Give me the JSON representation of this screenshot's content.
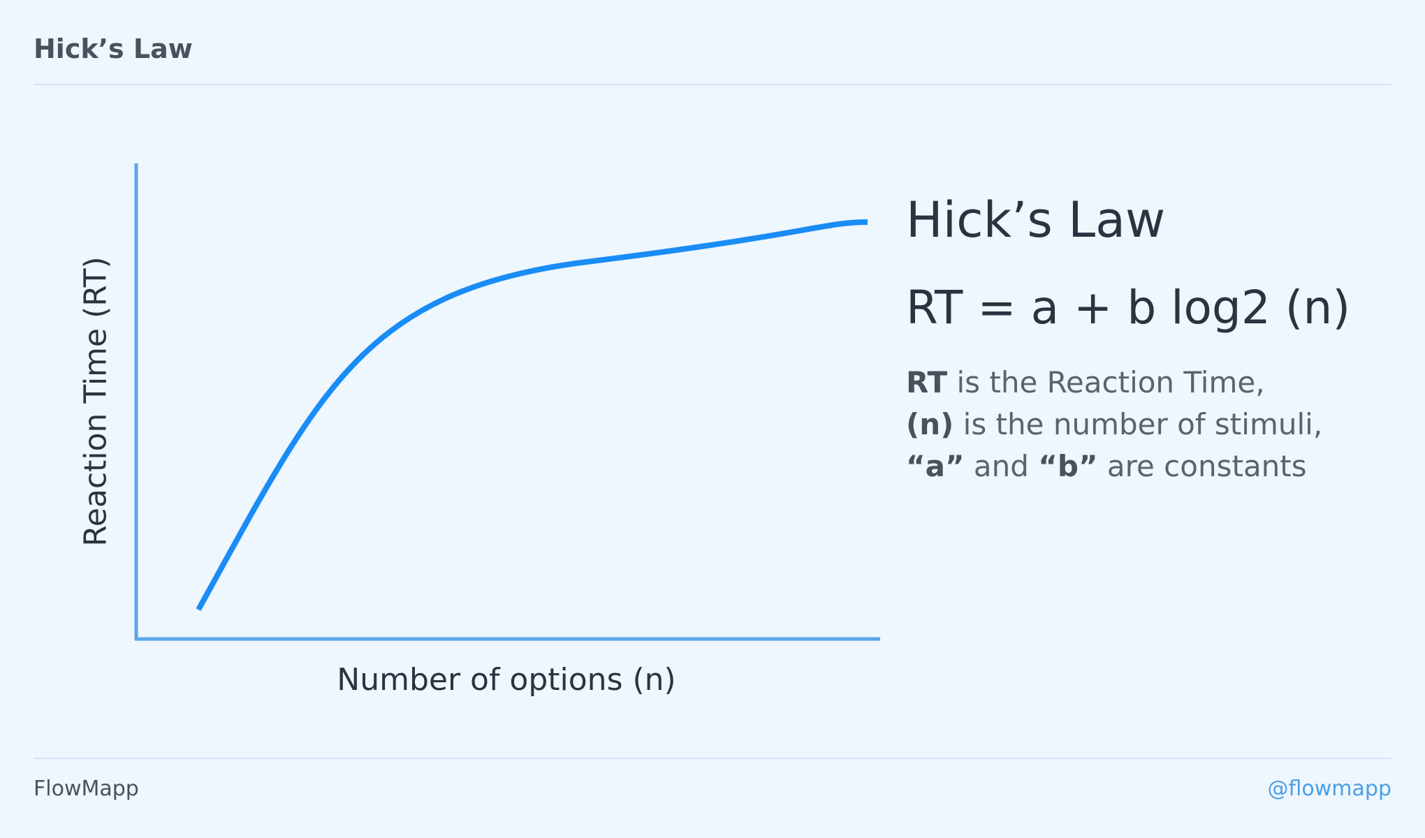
{
  "header": {
    "title": "Hick’s Law"
  },
  "chart_data": {
    "type": "line",
    "xlabel": "Number of options (n)",
    "ylabel": "Reaction Time (RT)",
    "axis_color": "#5aa6ea",
    "curve_color": "#1a8cf5",
    "grid": false
  },
  "info": {
    "title": "Hick’s Law",
    "formula": "RT = a + b log2 (n)",
    "desc": [
      {
        "strong": "RT",
        "rest": " is the Reaction Time,"
      },
      {
        "strong": "(n)",
        "rest": " is the number of stimuli,"
      },
      {
        "strong1": "“a”",
        "mid": " and ",
        "strong2": "“b”",
        "rest": " are constants"
      }
    ]
  },
  "footer": {
    "brand": "FlowMapp",
    "handle": "@flowmapp"
  }
}
